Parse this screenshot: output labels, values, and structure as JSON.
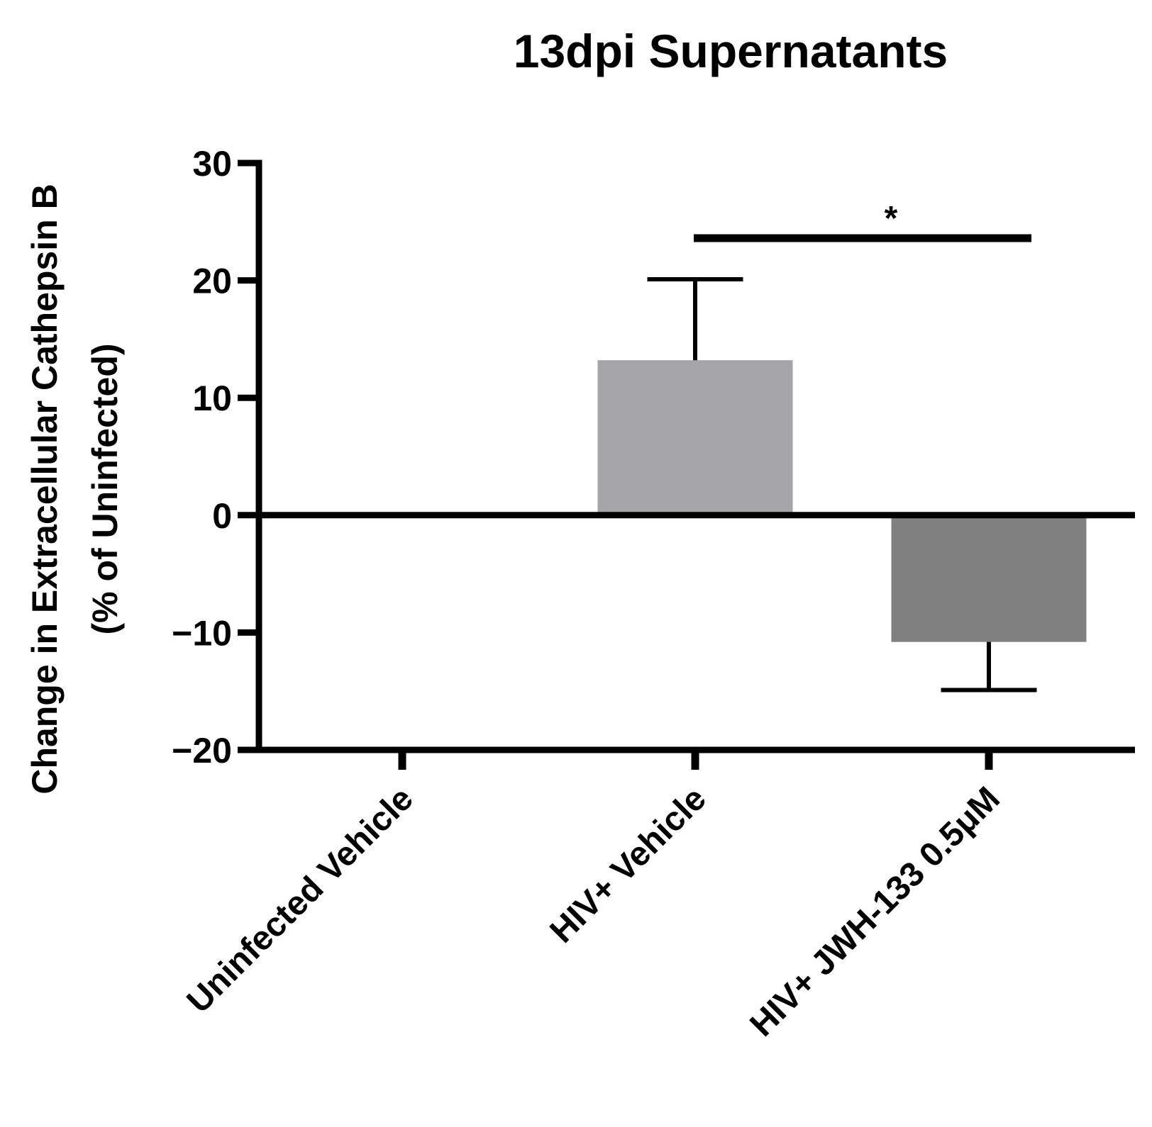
{
  "chart_data": {
    "type": "bar",
    "title": "13dpi Supernatants",
    "ylabel_line1": "Change in Extracellular Cathepsin B",
    "ylabel_line2": "(% of Uninfected)",
    "xlabel": "",
    "categories": [
      "Uninfected Vehicle",
      "HIV+ Vehicle",
      "HIV+ JWH-133 0.5μM"
    ],
    "values": [
      0,
      13.2,
      -10.8
    ],
    "error_plus": [
      0,
      6.9,
      0
    ],
    "error_minus": [
      0,
      0,
      4.1
    ],
    "bar_colors": [
      "#a4a4a9",
      "#a4a4a9",
      "#808080"
    ],
    "ylim": [
      -20,
      30
    ],
    "yticks": [
      30,
      20,
      10,
      0,
      -10,
      -20
    ],
    "ytick_labels": [
      "30",
      "20",
      "10",
      "0",
      "−10",
      "−20"
    ],
    "grid": false,
    "significance": {
      "label": "*",
      "from_category": 1,
      "to_category": 2,
      "y": 23.6
    }
  }
}
